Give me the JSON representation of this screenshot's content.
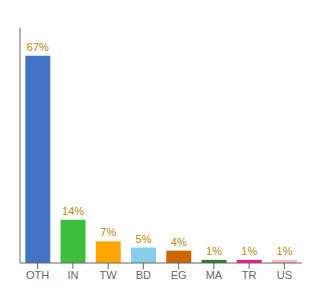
{
  "chart_data": {
    "type": "bar",
    "categories": [
      "OTH",
      "IN",
      "TW",
      "BD",
      "EG",
      "MA",
      "TR",
      "US"
    ],
    "values": [
      67,
      14,
      7,
      5,
      4,
      1,
      1,
      1
    ],
    "value_labels": [
      "67%",
      "14%",
      "7%",
      "5%",
      "4%",
      "1%",
      "1%",
      "1%"
    ],
    "colors": [
      "#4472C4",
      "#3DBE3D",
      "#FFA500",
      "#87CEEB",
      "#CC6600",
      "#2E7D2E",
      "#FF1493",
      "#FFB6C1"
    ],
    "ylim": [
      0,
      76
    ],
    "data_labels": true,
    "tick_labels": "x"
  }
}
